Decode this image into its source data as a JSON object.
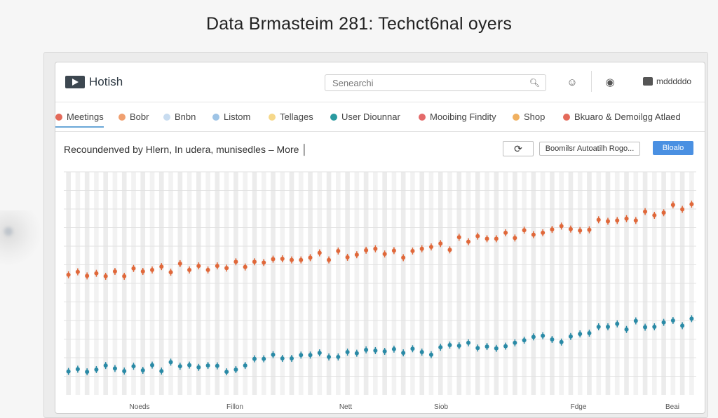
{
  "page_title": "Data Brmasteim 281: Techct6nal oyers",
  "app": {
    "logo_text": "Hotish",
    "search_placeholder": "Senearchi",
    "user_label": "mdddddo"
  },
  "tabs": [
    {
      "label": "Meetings",
      "dot_color": "#e46a5a",
      "active": true
    },
    {
      "label": "Bobr",
      "dot_color": "#f0a070"
    },
    {
      "label": "Bnbn",
      "dot_color": "#c8dcf0"
    },
    {
      "label": "Listom",
      "dot_color": "#9ec4e6"
    },
    {
      "label": "Tellages",
      "dot_color": "#f6d88a"
    },
    {
      "label": "User Diounnar",
      "dot_color": "#2a9aa0"
    },
    {
      "label": "Mooibing Findity",
      "dot_color": "#e46a6a"
    },
    {
      "label": "Shop",
      "dot_color": "#f0b060"
    },
    {
      "label": "Bkuaro & Demoilgg Atlaed",
      "dot_color": "#e46a5a"
    }
  ],
  "toolbar": {
    "recommendation_text": "Recoundenved by Hlern, In udera, munisedles – More │",
    "options_label": "Boomilsr Autoatilh Rogo...",
    "primary_label": "Bloalo"
  },
  "colors": {
    "series_orange": "#e0683a",
    "series_teal": "#2a8aa6",
    "accent_blue": "#4a90e2"
  },
  "chart_data": {
    "type": "scatter",
    "x_tick_labels": [
      "Noeds",
      "Fillon",
      "Nett",
      "Siob",
      "Fdge",
      "Beai"
    ],
    "grid": true,
    "series": [
      {
        "color": "#e0683a",
        "values": [
          47.3,
          48.1,
          47.0,
          47.7,
          46.9,
          48.2,
          46.9,
          49.0,
          48.2,
          48.6,
          49.5,
          48.0,
          50.3,
          48.6,
          49.7,
          48.6,
          49.7,
          49.1,
          50.8,
          49.4,
          50.8,
          50.6,
          51.5,
          51.6,
          51.3,
          51.3,
          51.9,
          53.2,
          51.3,
          53.7,
          52.0,
          52.7,
          53.9,
          54.3,
          52.9,
          53.8,
          51.9,
          53.7,
          54.3,
          54.8,
          55.7,
          54.0,
          57.4,
          56.2,
          57.7,
          57.0,
          57.0,
          58.6,
          57.2,
          59.3,
          58.1,
          58.6,
          59.5,
          60.4,
          59.6,
          59.2,
          59.4,
          62.1,
          61.7,
          61.9,
          62.4,
          61.9,
          64.3,
          63.3,
          64.0,
          66.1,
          64.9,
          66.3
        ]
      },
      {
        "color": "#2a8aa6",
        "values": [
          21.3,
          21.9,
          21.2,
          21.8,
          22.9,
          22.1,
          21.4,
          22.7,
          21.6,
          23.0,
          21.4,
          23.8,
          22.7,
          23.0,
          22.4,
          22.9,
          22.8,
          21.2,
          21.8,
          22.9,
          24.7,
          24.7,
          25.8,
          24.8,
          24.8,
          25.7,
          25.7,
          26.3,
          25.2,
          25.2,
          26.5,
          26.2,
          27.1,
          26.9,
          26.7,
          27.3,
          26.3,
          27.4,
          26.5,
          25.8,
          27.8,
          28.4,
          28.2,
          29.0,
          27.6,
          28.0,
          27.5,
          28.1,
          29.0,
          29.7,
          30.6,
          30.9,
          29.9,
          29.2,
          30.7,
          31.4,
          31.6,
          33.3,
          33.3,
          34.1,
          32.6,
          34.9,
          33.2,
          33.3,
          34.5,
          35.0,
          33.6,
          35.5
        ]
      }
    ]
  }
}
